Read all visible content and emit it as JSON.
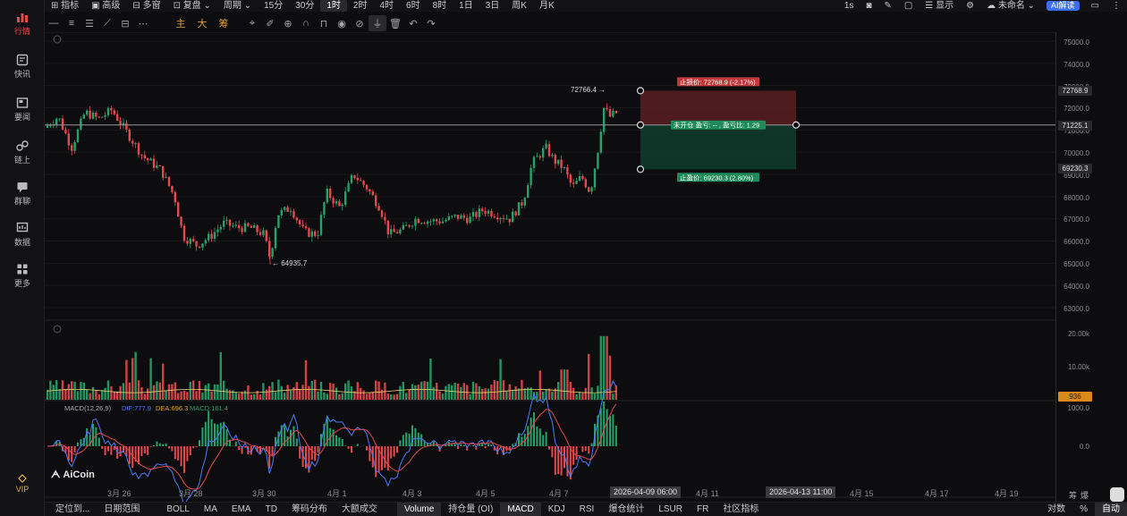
{
  "sidebar": {
    "items": [
      {
        "label": "行情",
        "icon": "chart-bars-icon"
      },
      {
        "label": "快讯",
        "icon": "newsletter-icon"
      },
      {
        "label": "要闻",
        "icon": "news-icon"
      },
      {
        "label": "链上",
        "icon": "onchain-icon"
      },
      {
        "label": "群聊",
        "icon": "chat-icon"
      },
      {
        "label": "数据",
        "icon": "data-icon"
      },
      {
        "label": "更多",
        "icon": "grid-icon"
      }
    ],
    "vip_label": "VIP"
  },
  "topbar": {
    "items": [
      "指标",
      "高级",
      "多窗",
      "复盘",
      "周期"
    ],
    "periods": [
      "15分",
      "30分",
      "1时",
      "2时",
      "4时",
      "6时",
      "8时",
      "1日",
      "3日",
      "周K",
      "月K"
    ],
    "active_period": "1时",
    "right": {
      "interval": "1s",
      "display": "显示",
      "layout_name": "未命名",
      "ai_badge": "AI解读"
    }
  },
  "drawbar": {
    "labels": [
      "主",
      "大",
      "筹"
    ]
  },
  "logo": "AiCoin",
  "price_axis": [
    "75000.0",
    "74000.0",
    "73000.0",
    "72000.0",
    "71000.0",
    "70000.0",
    "69000.0",
    "68000.0",
    "67000.0",
    "66000.0",
    "65000.0",
    "64000.0",
    "63000.0"
  ],
  "price_tags": {
    "stop_loss": "72768.9",
    "current": "71225.1",
    "take_profit": "69230.3"
  },
  "volume_axis": [
    "20.00k",
    "10.00k"
  ],
  "volume_tag": "936",
  "macd_axis": [
    "1000.0",
    "0.0"
  ],
  "annotations": {
    "high": "72766.4 →",
    "low": "← 64935.7"
  },
  "position": {
    "stop_loss_label": "止损价: 72768.9 (-2.17%)",
    "open_label": "未开仓  盈亏: --  , 盈亏比: 1.29",
    "take_profit_label": "止盈价: 69230.3 (2.80%)"
  },
  "macd_legend": {
    "name": "MACD(12,26,9)",
    "dif": "DIF:777.9",
    "dea": "DEA:696.3",
    "macd": "MACD:161.4"
  },
  "colors": {
    "up": "#26a269",
    "down": "#e5484d",
    "sl_fill": "#5a1f22",
    "tp_fill": "#103a2c",
    "accent": "#3b6ff5"
  },
  "xaxis": {
    "labels": [
      "3月 26",
      "3月 28",
      "3月 30",
      "4月 1",
      "4月 3",
      "4月 5",
      "4月 7",
      "4月 11",
      "4月 15",
      "4月 17",
      "4月 19"
    ],
    "tags": [
      "2026-04-09 06:00",
      "2026-04-13 11:00"
    ]
  },
  "bottombar": {
    "items": [
      "定位到...",
      "日期范围",
      "BOLL",
      "MA",
      "EMA",
      "TD",
      "筹码分布",
      "大额成交",
      "Volume",
      "持仓量 (OI)",
      "MACD",
      "KDJ",
      "RSI",
      "爆仓统计",
      "LSUR",
      "FR",
      "社区指标"
    ],
    "active": [
      "Volume",
      "MACD"
    ],
    "right": [
      "对数",
      "%",
      "自动"
    ]
  },
  "right_strip": {
    "labels": [
      "筹",
      "爆"
    ]
  }
}
